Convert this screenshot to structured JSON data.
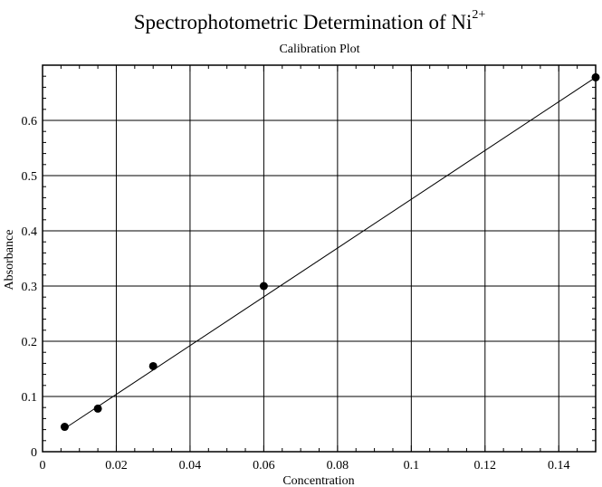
{
  "chart_data": {
    "type": "scatter",
    "title": "Spectrophotometric Determination of Ni",
    "title_superscript": "2+",
    "subtitle": "Calibration Plot",
    "xlabel": "Concentration",
    "ylabel": "Absorbance",
    "xlim": [
      0,
      0.15
    ],
    "ylim": [
      0,
      0.7
    ],
    "x_ticks": [
      0,
      0.02,
      0.04,
      0.06,
      0.08,
      0.1,
      0.12,
      0.14
    ],
    "x_tick_labels": [
      "0",
      "0.02",
      "0.04",
      "0.06",
      "0.08",
      "0.1",
      "0.12",
      "0.14"
    ],
    "y_ticks": [
      0,
      0.1,
      0.2,
      0.3,
      0.4,
      0.5,
      0.6
    ],
    "y_tick_labels": [
      "0",
      "0.1",
      "0.2",
      "0.3",
      "0.4",
      "0.5",
      "0.6"
    ],
    "grid": true,
    "series": [
      {
        "x": [
          0.006,
          0.015,
          0.03,
          0.06,
          0.15
        ],
        "y": [
          0.045,
          0.078,
          0.155,
          0.3,
          0.678
        ],
        "marker": "circle",
        "color": "#000000"
      }
    ],
    "fit_line": {
      "x": [
        0.006,
        0.15
      ],
      "y": [
        0.042,
        0.678
      ],
      "color": "#000000"
    }
  }
}
